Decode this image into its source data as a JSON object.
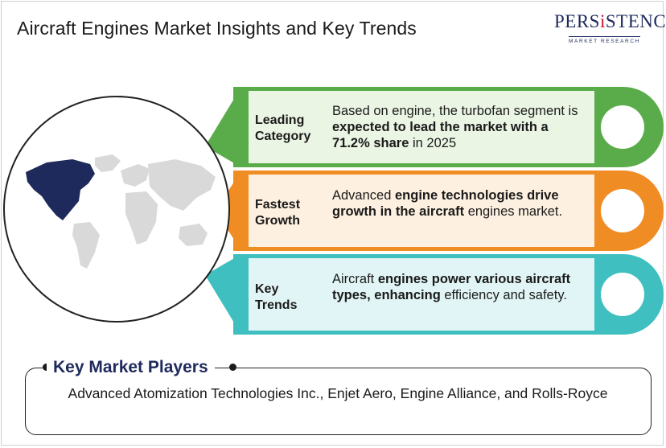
{
  "header": {
    "title": "Aircraft Engines Market Insights and Key Trends",
    "logo_main_pre": "PERS",
    "logo_main_accent": "i",
    "logo_main_post": "STENCE",
    "logo_sub": "MARKET RESEARCH"
  },
  "colors": {
    "green": "#5aac4a",
    "green_light": "#eaf5e4",
    "orange": "#f08c24",
    "orange_light": "#fdf0e0",
    "teal": "#3fbfc0",
    "teal_light": "#e2f5f6",
    "map_highlight": "#1f2a5c",
    "map_base": "#d9d9d9",
    "heading": "#1f2a5c"
  },
  "bands": [
    {
      "category_line1": "Leading",
      "category_line2": "Category",
      "text_plain1": "Based on engine, the turbofan segment is ",
      "text_bold": "expected to lead the market with a 71.2% share",
      "text_plain2": " in 2025"
    },
    {
      "category_line1": "Fastest",
      "category_line2": "Growth",
      "text_plain1": "Advanced ",
      "text_bold": "engine technologies drive growth in the aircraft",
      "text_plain2": " engines market."
    },
    {
      "category_line1": "Key",
      "category_line2": "Trends",
      "text_plain1": "Aircraft ",
      "text_bold": "engines power various aircraft types, enhancing",
      "text_plain2": " efficiency and safety."
    }
  ],
  "players": {
    "heading": "Key Market Players",
    "list": "Advanced Atomization Technologies Inc., Enjet Aero, Engine Alliance, and Rolls-Royce"
  }
}
